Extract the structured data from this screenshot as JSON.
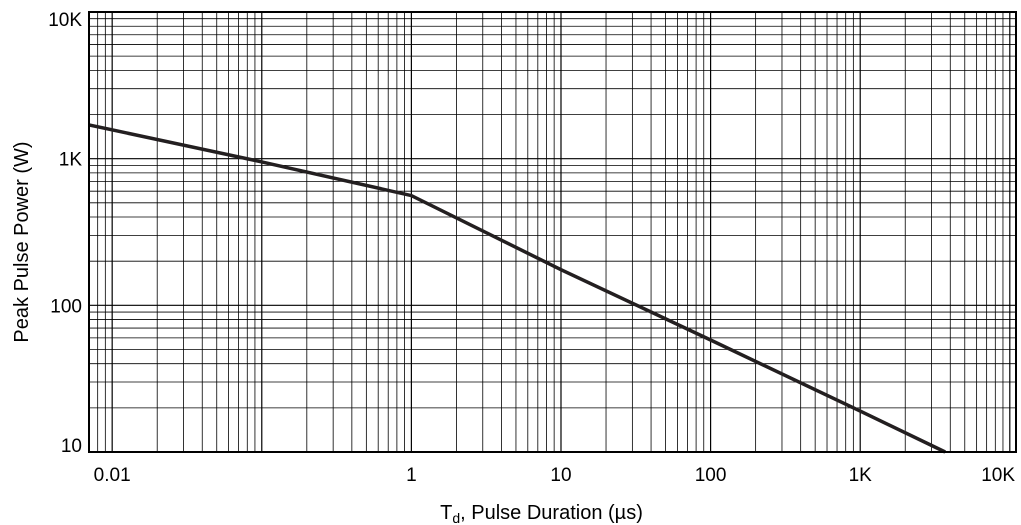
{
  "chart_data": {
    "type": "line",
    "title": "",
    "xlabel": {
      "main": "T",
      "sub": "d",
      "rest": ", Pulse Duration (µs)"
    },
    "ylabel": "Peak Pulse Power (W)",
    "xscale": "log",
    "yscale": "log",
    "xlim": [
      0.007,
      11000
    ],
    "ylim": [
      10,
      10000
    ],
    "x_ticks": [
      {
        "value": 0.01,
        "label": "0.01"
      },
      {
        "value": 1,
        "label": "1"
      },
      {
        "value": 10,
        "label": "10"
      },
      {
        "value": 100,
        "label": "100"
      },
      {
        "value": 1000,
        "label": "1K"
      },
      {
        "value": 10000,
        "label": "10K"
      }
    ],
    "y_ticks": [
      {
        "value": 10,
        "label": "10"
      },
      {
        "value": 100,
        "label": "100"
      },
      {
        "value": 1000,
        "label": "1K"
      },
      {
        "value": 10000,
        "label": "10K"
      }
    ],
    "grid": true,
    "series": [
      {
        "x": [
          0.007,
          0.1,
          1,
          10,
          100,
          1000,
          3700
        ],
        "y": [
          1700,
          950,
          560,
          175,
          58,
          19,
          10
        ]
      }
    ]
  }
}
